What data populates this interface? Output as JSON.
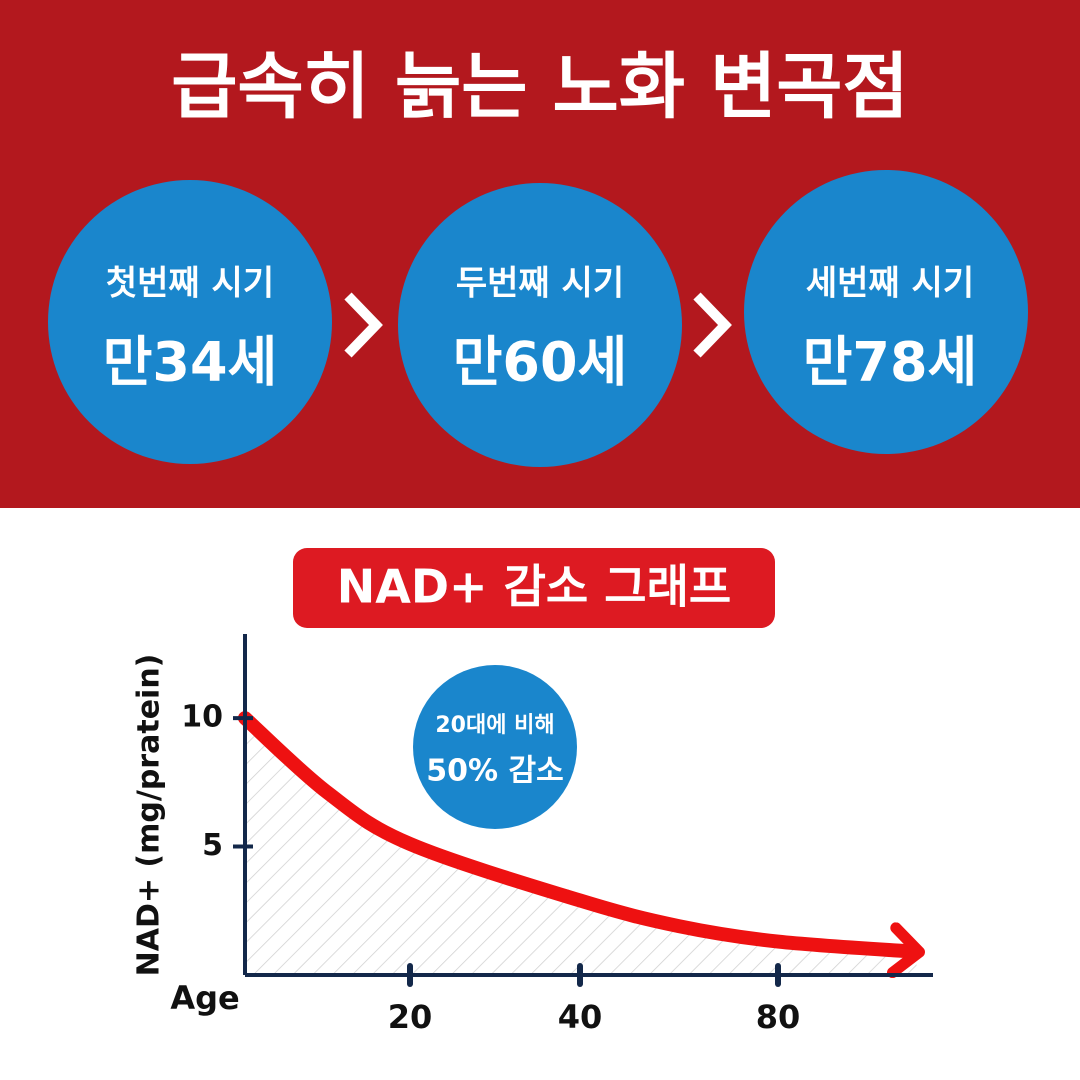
{
  "header": {
    "title": "급속히 늙는 노화 변곡점"
  },
  "stages": [
    {
      "label": "첫번째 시기",
      "age": "만34세"
    },
    {
      "label": "두번째 시기",
      "age": "만60세"
    },
    {
      "label": "세번째 시기",
      "age": "만78세"
    }
  ],
  "chart_data": {
    "type": "line",
    "title": "NAD+ 감소 그래프",
    "y_label": "NAD+ (mg/pratein)",
    "x_label": "Age",
    "annotation": [
      "20대에 비해",
      "50% 감소"
    ],
    "x": [
      0,
      10,
      20,
      40,
      60,
      80,
      108
    ],
    "series": [
      {
        "name": "NAD+",
        "color": "#ee1111",
        "values": [
          10,
          7.1,
          5.1,
          2.9,
          1.9,
          1.3,
          0.9
        ]
      }
    ],
    "xlim": [
      0,
      108
    ],
    "xticks": [
      20,
      40,
      80
    ],
    "ylim": [
      0,
      13
    ],
    "yticks": [
      5,
      10
    ]
  }
}
